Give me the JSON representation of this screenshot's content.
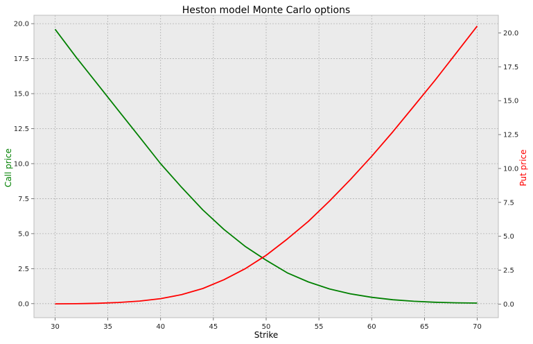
{
  "chart_data": {
    "type": "line",
    "title": "Heston model Monte Carlo options",
    "xlabel": "Strike",
    "ylabel_left": "Call price",
    "ylabel_right": "Put price",
    "xlim": [
      28,
      72
    ],
    "ylim_left": [
      -1.0,
      20.6
    ],
    "ylim_right": [
      -1.0,
      21.3
    ],
    "x_ticks": [
      "30",
      "35",
      "40",
      "45",
      "50",
      "55",
      "60",
      "65",
      "70"
    ],
    "y_ticks_left": [
      "0.0",
      "2.5",
      "5.0",
      "7.5",
      "10.0",
      "12.5",
      "15.0",
      "17.5",
      "20.0"
    ],
    "y_ticks_right": [
      "0.0",
      "2.5",
      "5.0",
      "7.5",
      "10.0",
      "12.5",
      "15.0",
      "17.5",
      "20.0"
    ],
    "grid": true,
    "colors": {
      "call": "#008000",
      "put": "#ff0000",
      "background": "#ebebeb",
      "grid": "#b0b0b0",
      "spine": "#bcbcbc"
    },
    "series": [
      {
        "axis": "left",
        "color": "#008000",
        "x": [
          30,
          32,
          34,
          36,
          38,
          40,
          42,
          44,
          46,
          48,
          50,
          52,
          54,
          56,
          58,
          60,
          62,
          64,
          66,
          68,
          70
        ],
        "values": [
          19.6,
          17.6,
          15.7,
          13.8,
          11.9,
          10.0,
          8.3,
          6.7,
          5.3,
          4.1,
          3.1,
          2.2,
          1.55,
          1.05,
          0.7,
          0.45,
          0.28,
          0.17,
          0.1,
          0.06,
          0.04
        ]
      },
      {
        "axis": "right",
        "color": "#ff0000",
        "x": [
          30,
          32,
          34,
          36,
          38,
          40,
          42,
          44,
          46,
          48,
          50,
          52,
          54,
          56,
          58,
          60,
          62,
          64,
          66,
          68,
          70
        ],
        "values": [
          0.02,
          0.03,
          0.06,
          0.12,
          0.22,
          0.4,
          0.7,
          1.15,
          1.8,
          2.6,
          3.6,
          4.8,
          6.1,
          7.6,
          9.2,
          10.9,
          12.7,
          14.6,
          16.5,
          18.5,
          20.5
        ]
      }
    ]
  }
}
